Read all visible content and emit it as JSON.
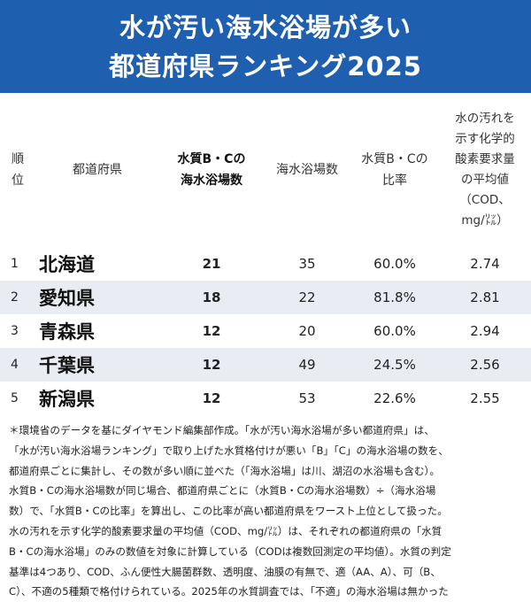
{
  "title": {
    "line1": "水が汚い海水浴場が多い",
    "line2": "都道府県ランキング2025"
  },
  "table": {
    "headers": {
      "rank": [
        "順",
        "位"
      ],
      "prefecture": "都道府県",
      "bc_count": [
        "水質B・Cの",
        "海水浴場数"
      ],
      "total_count": "海水浴場数",
      "bc_ratio": [
        "水質B・Cの",
        "比率"
      ],
      "cod": [
        "水の汚れを",
        "示す化学的",
        "酸素要求量",
        "の平均値",
        "（COD、",
        "mg/㍑）"
      ]
    },
    "rows": [
      {
        "rank": "1",
        "prefecture": "北海道",
        "bc_count": "21",
        "total_count": "35",
        "bc_ratio": "60.0%",
        "cod": "2.74"
      },
      {
        "rank": "2",
        "prefecture": "愛知県",
        "bc_count": "18",
        "total_count": "22",
        "bc_ratio": "81.8%",
        "cod": "2.81"
      },
      {
        "rank": "3",
        "prefecture": "青森県",
        "bc_count": "12",
        "total_count": "20",
        "bc_ratio": "60.0%",
        "cod": "2.94"
      },
      {
        "rank": "4",
        "prefecture": "千葉県",
        "bc_count": "12",
        "total_count": "49",
        "bc_ratio": "24.5%",
        "cod": "2.56"
      },
      {
        "rank": "5",
        "prefecture": "新潟県",
        "bc_count": "12",
        "total_count": "53",
        "bc_ratio": "22.6%",
        "cod": "2.55"
      }
    ]
  },
  "notes": [
    "＊環境省のデータを基にダイヤモンド編集部作成。「水が汚い海水浴場が多い都道府県」は、",
    "「水が汚い海水浴場ランキング」で取り上げた水質格付けが悪い「B」「C」の海水浴場の数を、",
    "都道府県ごとに集計し、その数が多い順に並べた（「海水浴場」は川、湖沼の水浴場も含む）。",
    "水質B・Cの海水浴場数が同じ場合、都道府県ごとに（水質B・Cの海水浴場数）÷（海水浴場",
    "数）で、「水質B・Cの比率」を算出し、この比率が高い都道府県をワースト上位として扱った。",
    "水の汚れを示す化学的酸素要求量の平均値（COD、mg/㍑）は、それぞれの都道府県の「水質",
    "B・Cの海水浴場」のみの数値を対象に計算している（CODは複数回測定の平均値）。水質の判定",
    "基準は4つあり、COD、ふん便性大腸菌群数、透明度、油膜の有無で、適（AA、A）、可（B、",
    "C）、不適の5種類で格付けられている。2025年の水質調査では、「不適」の海水浴場は無かった"
  ]
}
